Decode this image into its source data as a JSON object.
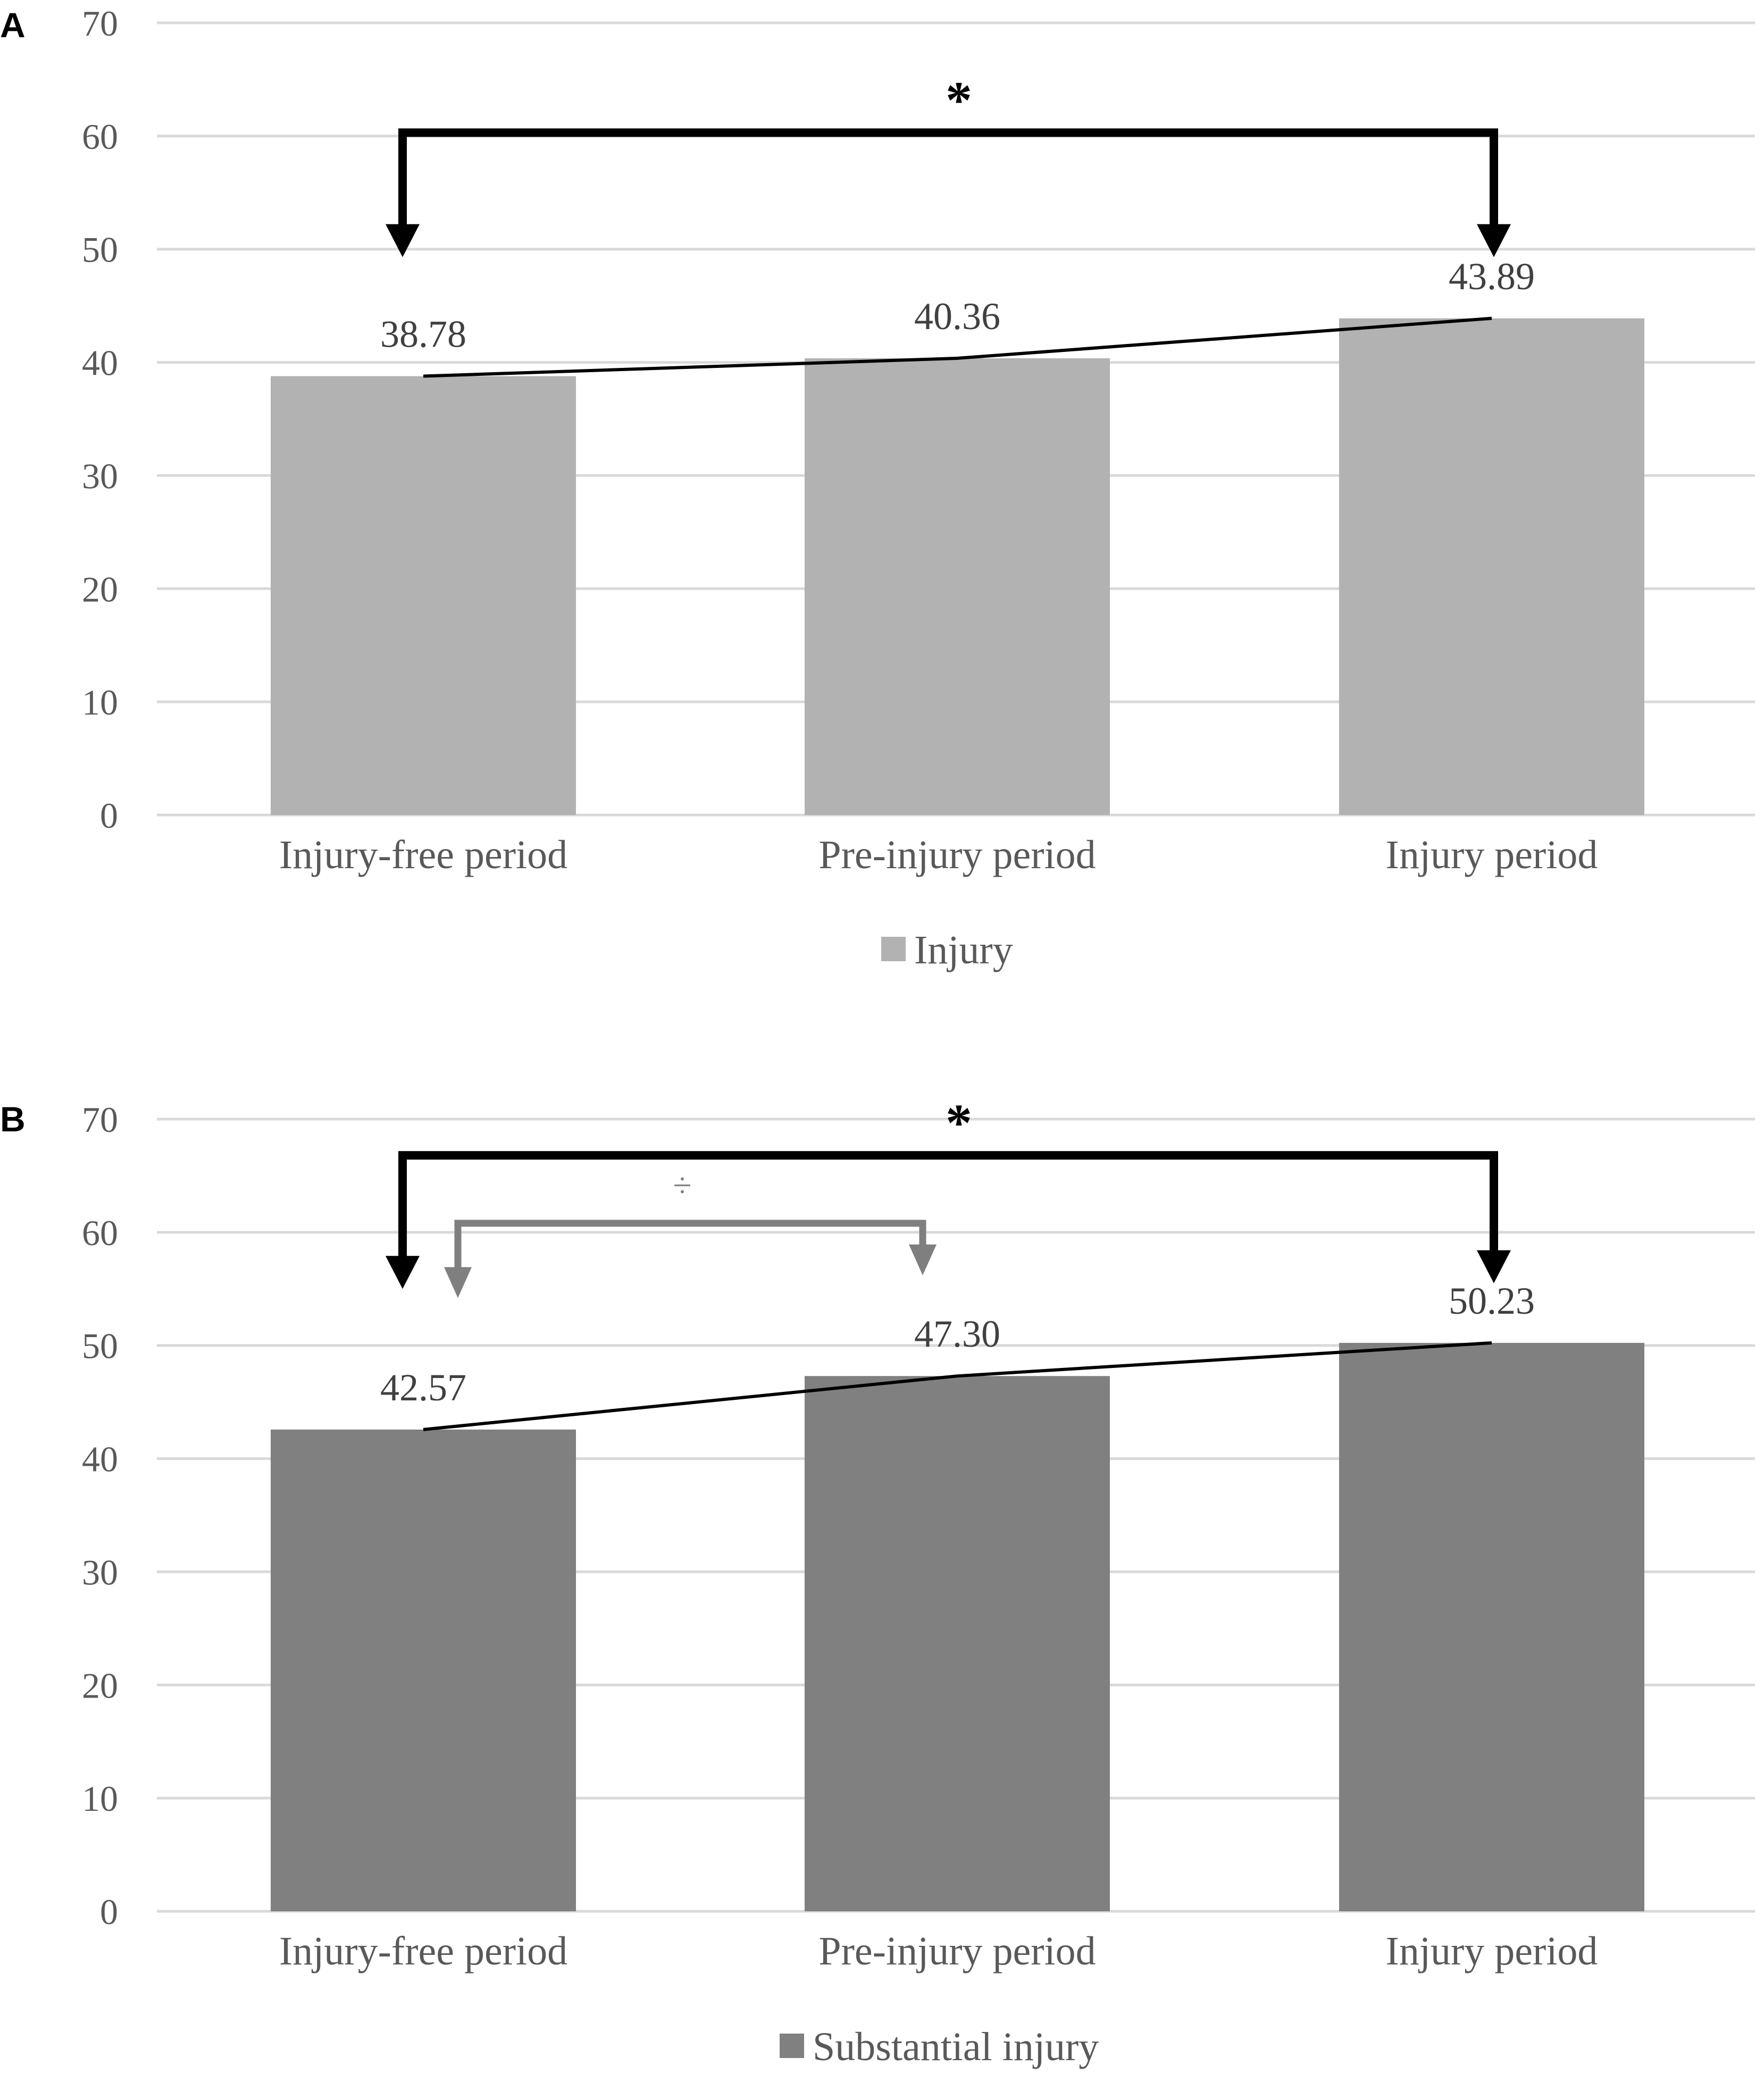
{
  "panels": [
    {
      "letter": "A",
      "color": "#b2b2b2",
      "chart_data": {
        "type": "bar",
        "categories": [
          "Injury-free period",
          "Pre-injury period",
          "Injury period"
        ],
        "series": [
          {
            "name": "Injury",
            "values": [
              38.78,
              40.36,
              43.89
            ]
          }
        ],
        "data_labels": [
          "38.78",
          "40.36",
          "43.89"
        ],
        "ylim": [
          0,
          70
        ],
        "yticks": [
          0,
          10,
          20,
          30,
          40,
          50,
          60,
          70
        ],
        "ytick_labels": [
          "0",
          "10",
          "20",
          "30",
          "40",
          "50",
          "60",
          "70"
        ],
        "grid": true,
        "trend_line": true,
        "legend_position": "bottom-center",
        "annotations": [
          {
            "symbol": "*",
            "from": "Injury-free period",
            "to": "Injury period",
            "level": 60.3,
            "color": "#000000"
          }
        ]
      }
    },
    {
      "letter": "B",
      "color": "#7f807f",
      "chart_data": {
        "type": "bar",
        "categories": [
          "Injury-free period",
          "Pre-injury period",
          "Injury period"
        ],
        "series": [
          {
            "name": "Substantial injury",
            "values": [
              42.57,
              47.3,
              50.23
            ]
          }
        ],
        "data_labels": [
          "42.57",
          "47.30",
          "50.23"
        ],
        "ylim": [
          0,
          70
        ],
        "yticks": [
          0,
          10,
          20,
          30,
          40,
          50,
          60,
          70
        ],
        "ytick_labels": [
          "0",
          "10",
          "20",
          "30",
          "40",
          "50",
          "60",
          "70"
        ],
        "grid": true,
        "trend_line": true,
        "legend_position": "bottom-center",
        "annotations": [
          {
            "symbol": "*",
            "from": "Injury-free period",
            "to": "Injury period",
            "level": 66.8,
            "color": "#000000"
          },
          {
            "symbol": "÷",
            "from": "Injury-free period",
            "to": "Pre-injury period",
            "level": 60.8,
            "color": "#7f7f7f"
          }
        ]
      }
    }
  ]
}
